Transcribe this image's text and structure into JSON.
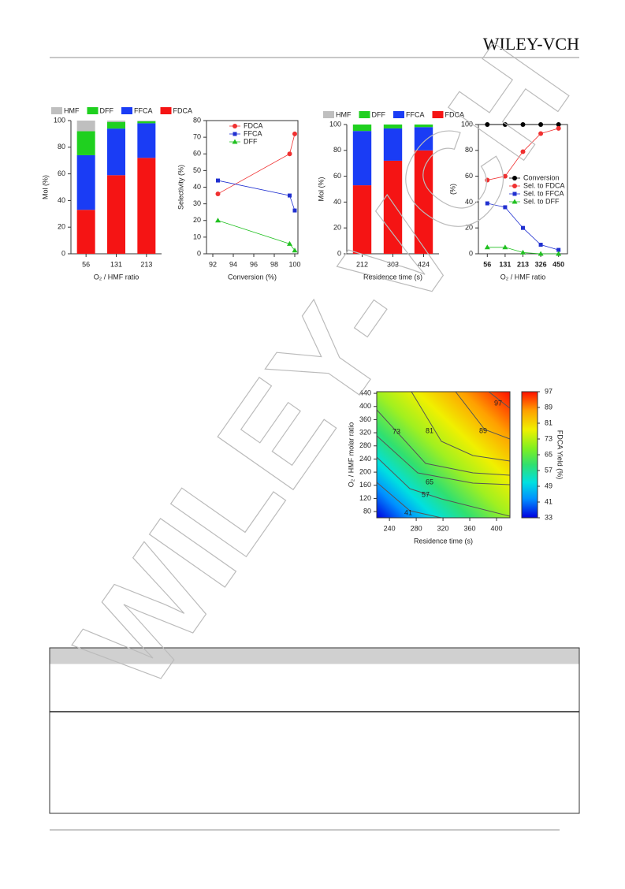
{
  "header": {
    "brand": "WILEY-VCH"
  },
  "watermark": "WILEY-VCH",
  "chart_data": [
    {
      "type": "bar",
      "stacked": true,
      "categories": [
        "56",
        "131",
        "213"
      ],
      "xlabel": "O₂ / HMF ratio",
      "ylabel": "Mol (%)",
      "ylim": [
        0,
        100
      ],
      "yticks": [
        0,
        20,
        40,
        60,
        80,
        100
      ],
      "legend": "top",
      "series": [
        {
          "name": "HMF",
          "color": "#bfbfbf",
          "values": [
            8,
            1,
            0.5
          ]
        },
        {
          "name": "DFF",
          "color": "#1fd01f",
          "values": [
            18,
            5,
            1.5
          ]
        },
        {
          "name": "FFCA",
          "color": "#1a3cf5",
          "values": [
            41,
            35,
            26
          ]
        },
        {
          "name": "FDCA",
          "color": "#f51414",
          "values": [
            33,
            59,
            72
          ]
        }
      ]
    },
    {
      "type": "line",
      "x": [
        92.5,
        99.5,
        100
      ],
      "xlabel": "Conversion (%)",
      "ylabel": "Selectivity (%)",
      "xlim": [
        92,
        100
      ],
      "xticks": [
        92,
        94,
        96,
        98,
        100
      ],
      "ylim": [
        0,
        80
      ],
      "yticks": [
        0,
        10,
        20,
        30,
        40,
        50,
        60,
        70,
        80
      ],
      "legend": "upper center",
      "series": [
        {
          "name": "FDCA",
          "color": "#f03030",
          "marker": "circle",
          "values": [
            36,
            60,
            72
          ]
        },
        {
          "name": "FFCA",
          "color": "#2030d0",
          "marker": "square",
          "values": [
            44,
            35,
            26
          ]
        },
        {
          "name": "DFF",
          "color": "#20c020",
          "marker": "triangle",
          "values": [
            20,
            6,
            2
          ]
        }
      ]
    },
    {
      "type": "bar",
      "stacked": true,
      "categories": [
        "212",
        "303",
        "424"
      ],
      "xlabel": "Residence time (s)",
      "ylabel": "Mol (%)",
      "ylim": [
        0,
        100
      ],
      "yticks": [
        0,
        20,
        40,
        60,
        80,
        100
      ],
      "legend": "top",
      "series": [
        {
          "name": "HMF",
          "color": "#bfbfbf",
          "values": [
            0,
            0,
            0
          ]
        },
        {
          "name": "DFF",
          "color": "#1fd01f",
          "values": [
            5,
            3,
            2
          ]
        },
        {
          "name": "FFCA",
          "color": "#1a3cf5",
          "values": [
            42,
            25,
            18
          ]
        },
        {
          "name": "FDCA",
          "color": "#f51414",
          "values": [
            53,
            72,
            80
          ]
        }
      ]
    },
    {
      "type": "line",
      "categories": [
        "56",
        "131",
        "213",
        "326",
        "450"
      ],
      "xlabel": "O₂ / HMF ratio",
      "ylabel": "(%)",
      "ylim": [
        0,
        100
      ],
      "yticks": [
        0,
        20,
        40,
        60,
        80,
        100
      ],
      "legend": "center right",
      "series": [
        {
          "name": "Conversion",
          "color": "#000000",
          "marker": "circle",
          "values": [
            100,
            100,
            100,
            100,
            100
          ]
        },
        {
          "name": "Sel. to FDCA",
          "color": "#f03030",
          "marker": "circle",
          "values": [
            57,
            60,
            79,
            93,
            97
          ]
        },
        {
          "name": "Sel. to FFCA",
          "color": "#2030d0",
          "marker": "square",
          "values": [
            39,
            36,
            20,
            7,
            3
          ]
        },
        {
          "name": "Sel. to DFF",
          "color": "#20c020",
          "marker": "triangle",
          "values": [
            5,
            5,
            1,
            0,
            0
          ]
        }
      ]
    },
    {
      "type": "contour",
      "xlabel": "Residence time (s)",
      "ylabel": "O₂ / HMF molar ratio",
      "xlim": [
        221,
        420
      ],
      "xticks": [
        240,
        280,
        320,
        360,
        400
      ],
      "ylim": [
        61,
        445
      ],
      "yticks": [
        80,
        120,
        160,
        200,
        240,
        280,
        320,
        360,
        400,
        440
      ],
      "levels": [
        41,
        57,
        65,
        73,
        81,
        89,
        97
      ],
      "colorbar": {
        "label": "FDCA Yield (%)",
        "lim": [
          33,
          97
        ],
        "ticks": [
          33,
          41,
          49,
          57,
          65,
          73,
          81,
          89,
          97
        ]
      }
    }
  ]
}
